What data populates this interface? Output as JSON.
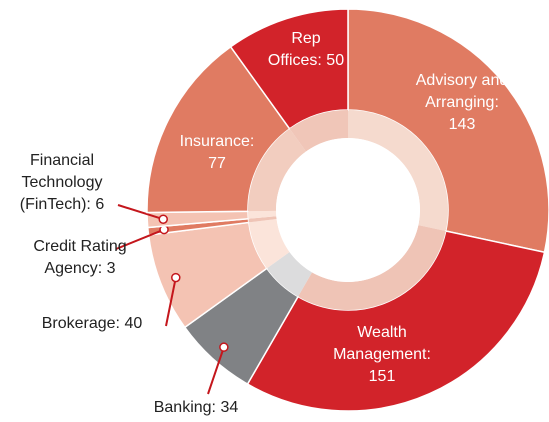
{
  "chart_data": {
    "type": "donut",
    "categories": [
      "Advisory and Arranging:",
      "Wealth Management:",
      "Banking:",
      "Brokerage:",
      "Credit Rating Agency:",
      "Financial Technology (FinTech):",
      "Insurance:",
      "Rep Offices:"
    ],
    "values": [
      143,
      151,
      34,
      40,
      3,
      6,
      77,
      50
    ],
    "colors": [
      "#e07b62",
      "#d2232a",
      "#808285",
      "#f4c3b3",
      "#e07b62",
      "#f4c3b3",
      "#e07b62",
      "#d2232a"
    ],
    "inner_colors": [
      "#f5dace",
      "#efc4b6",
      "#dcdcdd",
      "#fbe4da",
      "#efc4b6",
      "#fbe4da",
      "#f2cdbf",
      "#f0c6b8"
    ]
  }
}
